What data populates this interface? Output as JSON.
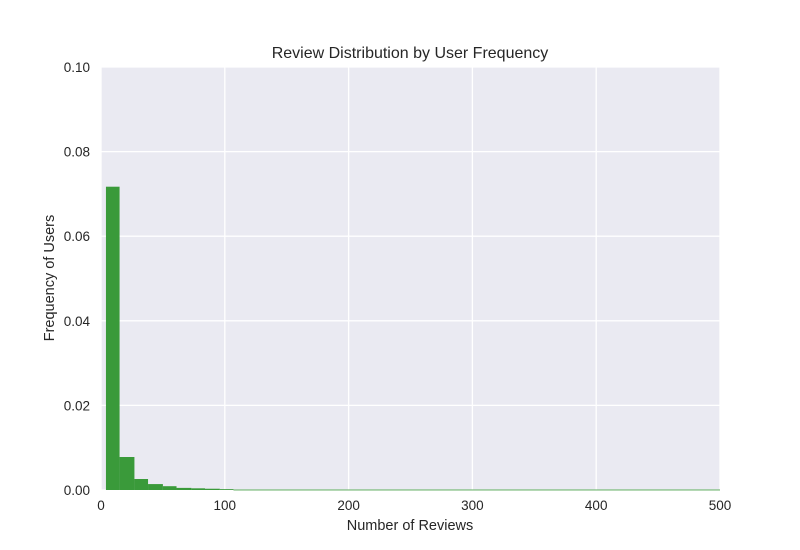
{
  "chart_data": {
    "type": "bar",
    "title": "Review Distribution by User Frequency",
    "xlabel": "Number of Reviews",
    "ylabel": "Frequency of Users",
    "xlim": [
      0,
      500
    ],
    "ylim": [
      0,
      0.1
    ],
    "x_ticks": [
      "0",
      "100",
      "200",
      "300",
      "400",
      "500"
    ],
    "y_ticks": [
      "0.00",
      "0.02",
      "0.04",
      "0.06",
      "0.08",
      "0.10"
    ],
    "grid": true,
    "bar_color": "#3a9a3a",
    "plot_background": "#eaeaf2",
    "bins": [
      {
        "x0": 4,
        "x1": 15,
        "value": 0.0717
      },
      {
        "x0": 15,
        "x1": 27,
        "value": 0.0078
      },
      {
        "x0": 27,
        "x1": 38,
        "value": 0.0026
      },
      {
        "x0": 38,
        "x1": 50,
        "value": 0.0014
      },
      {
        "x0": 50,
        "x1": 61,
        "value": 0.0009
      },
      {
        "x0": 61,
        "x1": 73,
        "value": 0.0005
      },
      {
        "x0": 73,
        "x1": 84,
        "value": 0.0004
      },
      {
        "x0": 84,
        "x1": 96,
        "value": 0.0003
      },
      {
        "x0": 96,
        "x1": 107,
        "value": 0.0002
      },
      {
        "x0": 107,
        "x1": 500,
        "value": 0.0001
      }
    ]
  }
}
